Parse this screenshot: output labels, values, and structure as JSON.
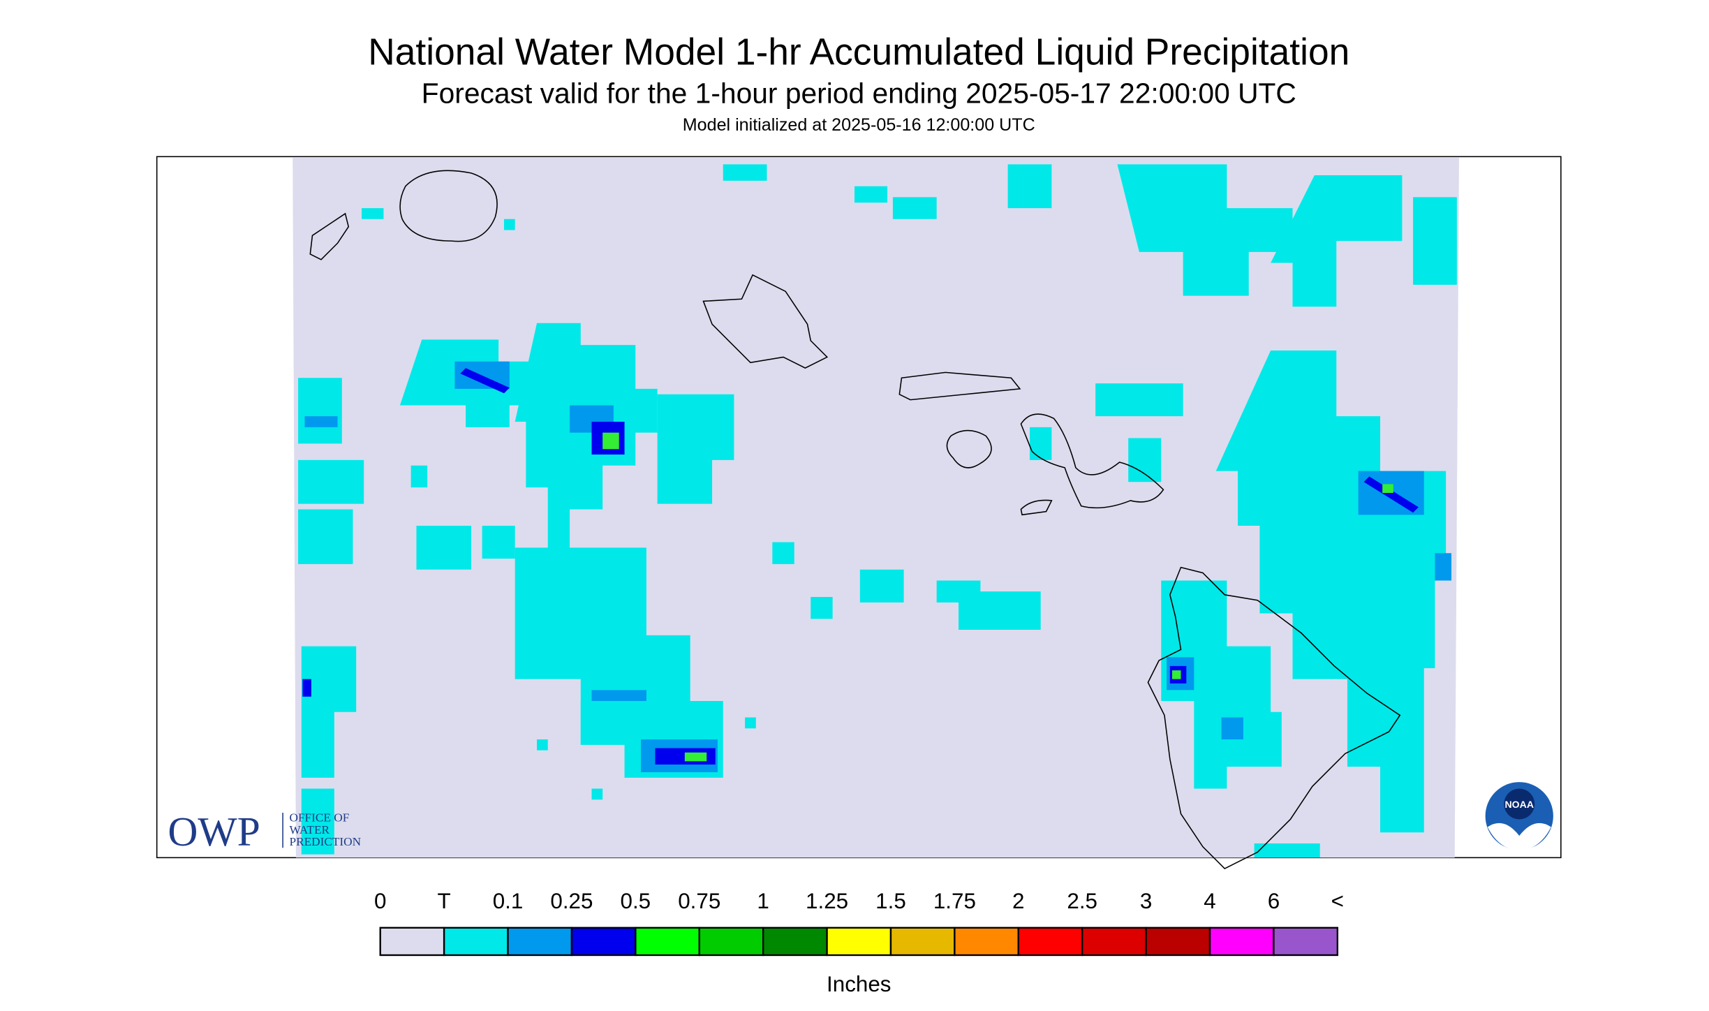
{
  "header": {
    "title": "National Water Model 1-hr Accumulated Liquid Precipitation",
    "subtitle": "Forecast valid for the 1-hour period ending 2025-05-17 22:00:00 UTC",
    "model_init": "Model initialized at 2025-05-16 12:00:00 UTC"
  },
  "logo": {
    "owp": "OWP",
    "lines": [
      "OFFICE OF",
      "WATER",
      "PREDICTION"
    ],
    "noaa": "NOAA"
  },
  "legend": {
    "labels": [
      "0",
      "T",
      "0.1",
      "0.25",
      "0.5",
      "0.75",
      "1",
      "1.25",
      "1.5",
      "1.75",
      "2",
      "2.5",
      "3",
      "4",
      "6",
      "<"
    ],
    "colors": [
      "#dcdcee",
      "#00e8e8",
      "#0099ee",
      "#0000ee",
      "#00ff00",
      "#00cc00",
      "#008800",
      "#ffff00",
      "#e6b800",
      "#ff8800",
      "#ff0000",
      "#dd0000",
      "#bb0000",
      "#ff00ff",
      "#9955cc"
    ],
    "unit": "Inches"
  }
}
